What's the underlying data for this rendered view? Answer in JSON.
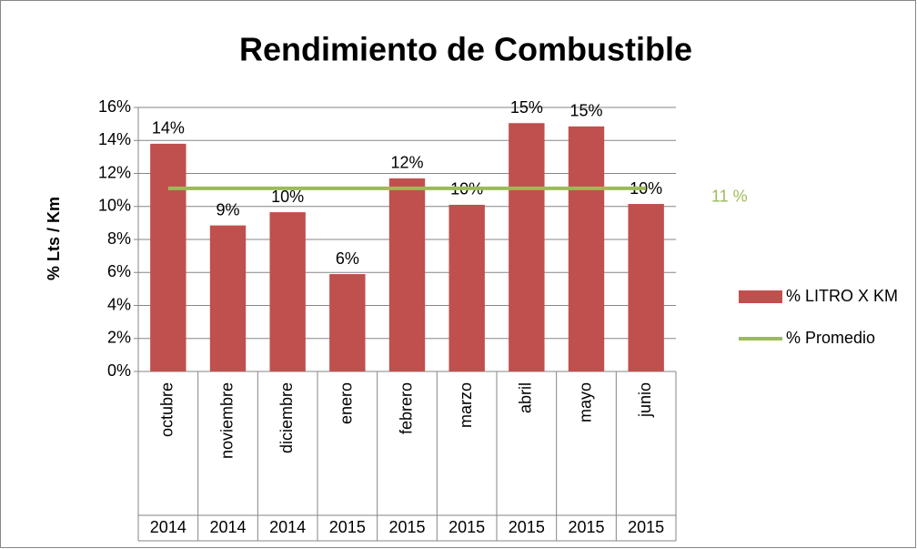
{
  "chart_data": {
    "type": "bar",
    "title": "Rendimiento de Combustible",
    "y_label": "% Lts / Km",
    "categories": [
      "octubre",
      "noviembre",
      "diciembre",
      "enero",
      "febrero",
      "marzo",
      "abril",
      "mayo",
      "junio"
    ],
    "category_groups": [
      "2014",
      "2014",
      "2014",
      "2015",
      "2015",
      "2015",
      "2015",
      "2015",
      "2015"
    ],
    "series": [
      {
        "name": "% LITRO X KM",
        "type": "bar",
        "color": "#c0504d",
        "values": [
          13.8,
          8.85,
          9.65,
          5.9,
          11.7,
          10.1,
          15.05,
          14.85,
          10.15
        ],
        "value_labels": [
          "14%",
          "9%",
          "10%",
          "6%",
          "12%",
          "10%",
          "15%",
          "15%",
          "10%"
        ]
      },
      {
        "name": "% Promedio",
        "type": "line",
        "color": "#9bbb59",
        "values": [
          11.1,
          11.1,
          11.1,
          11.1,
          11.1,
          11.1,
          11.1,
          11.1,
          11.1
        ]
      }
    ],
    "annotation": "11 %",
    "ylim": [
      0,
      16
    ],
    "yticks": [
      {
        "value": 0,
        "label": "0%"
      },
      {
        "value": 2,
        "label": "2%"
      },
      {
        "value": 4,
        "label": "4%"
      },
      {
        "value": 6,
        "label": "6%"
      },
      {
        "value": 8,
        "label": "8%"
      },
      {
        "value": 10,
        "label": "10%"
      },
      {
        "value": 12,
        "label": "12%"
      },
      {
        "value": 14,
        "label": "14%"
      },
      {
        "value": 16,
        "label": "16%"
      }
    ],
    "grid": true,
    "legend": "right"
  }
}
